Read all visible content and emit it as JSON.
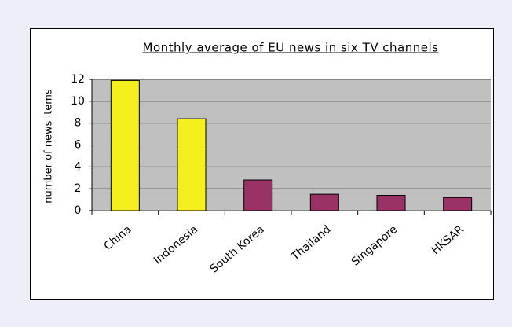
{
  "chart_data": {
    "type": "bar",
    "title": "Monthly average of EU news in six TV channels",
    "y_label": "number of news items",
    "categories": [
      "China",
      "Indonesia",
      "South Korea",
      "Thailand",
      "Singapore",
      "HKSAR"
    ],
    "values": [
      11.9,
      8.4,
      2.8,
      1.5,
      1.4,
      1.2
    ],
    "colors": [
      "#f5ef1e",
      "#f5ef1e",
      "#993366",
      "#993366",
      "#993366",
      "#993366"
    ],
    "ylim": [
      0,
      12
    ],
    "yticks": [
      0,
      2,
      4,
      6,
      8,
      10,
      12
    ],
    "grid": true
  }
}
